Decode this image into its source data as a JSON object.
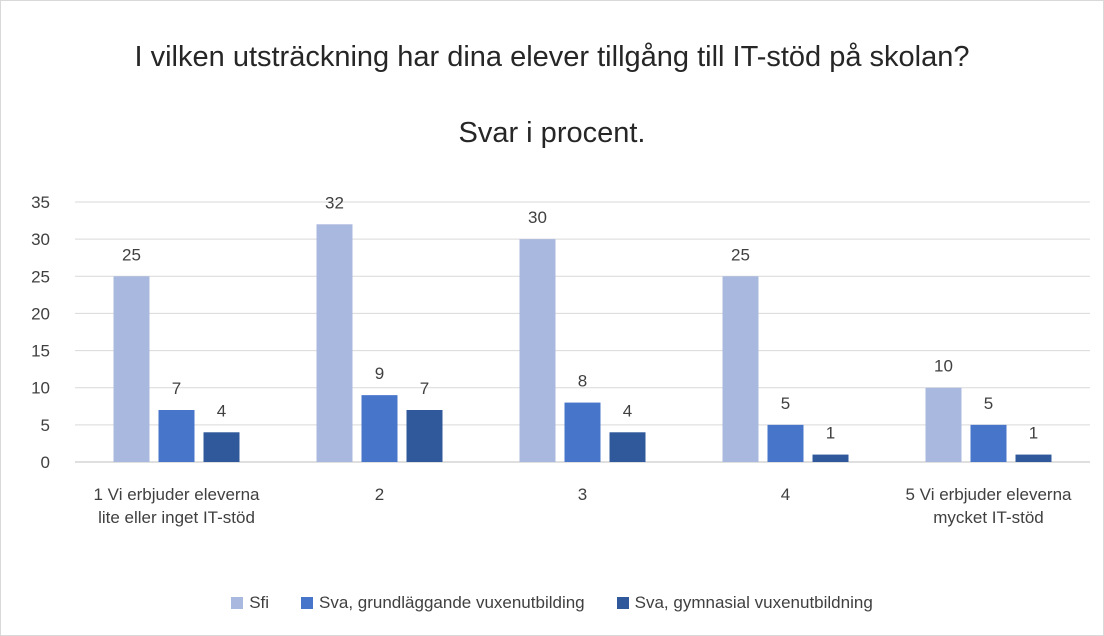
{
  "chart_data": {
    "type": "bar",
    "title": "I vilken utsträckning har dina elever tillgång till IT-stöd på skolan?",
    "subtitle": "Svar i procent.",
    "categories": [
      "1 Vi erbjuder eleverna lite eller inget IT-stöd",
      "2",
      "3",
      "4",
      "5 Vi erbjuder eleverna mycket IT-stöd"
    ],
    "series": [
      {
        "name": "Sfi",
        "color": "#a9b8de",
        "values": [
          25,
          32,
          30,
          25,
          10
        ]
      },
      {
        "name": "Sva, grundläggande vuxenutbilding",
        "color": "#4775ca",
        "values": [
          7,
          9,
          8,
          5,
          5
        ]
      },
      {
        "name": "Sva, gymnasial vuxenutbildning",
        "color": "#30599c",
        "values": [
          4,
          7,
          4,
          1,
          1
        ]
      }
    ],
    "ylim": [
      0,
      35
    ],
    "yticks": [
      0,
      5,
      10,
      15,
      20,
      25,
      30,
      35
    ],
    "grid": true,
    "legend": "bottom"
  }
}
